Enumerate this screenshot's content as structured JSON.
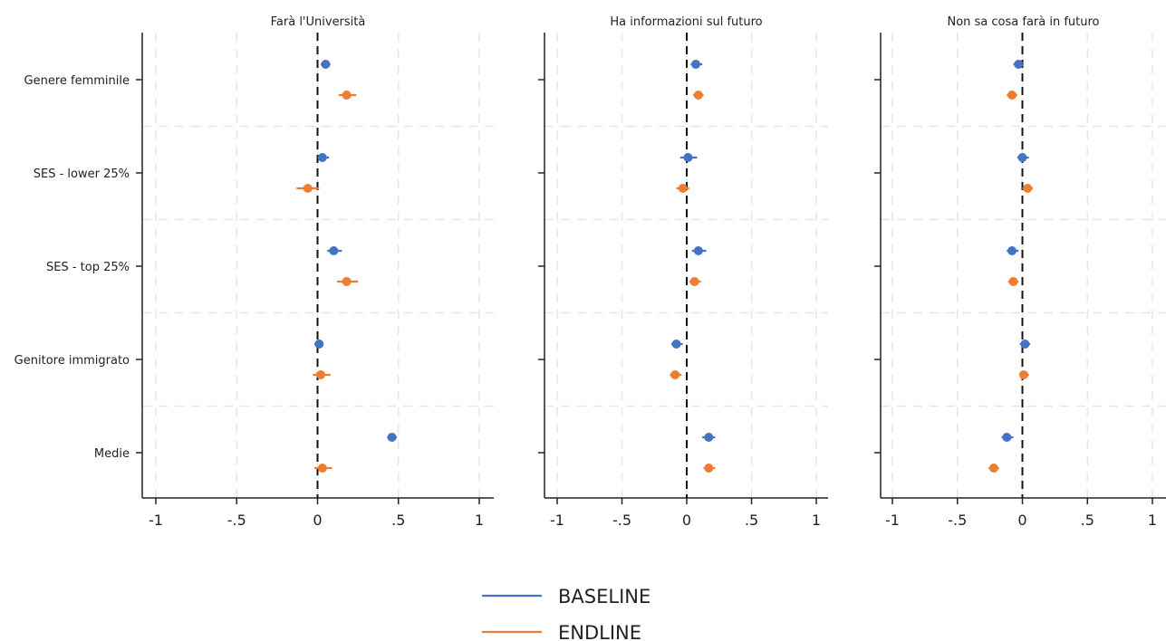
{
  "chart_data": {
    "type": "scatter",
    "subtype": "coefficient-plot",
    "categories": [
      "Genere femminile",
      "SES - lower 25%",
      "SES - top 25%",
      "Genitore immigrato",
      "Medie"
    ],
    "x_ticks": [
      -1,
      -0.5,
      0,
      0.5,
      1
    ],
    "x_tick_labels": [
      "-1",
      "-.5",
      "0",
      ".5",
      "1"
    ],
    "xlim": [
      -1.08,
      1.08
    ],
    "reference_line": 0,
    "grid": true,
    "legend_position": "bottom-center",
    "colors": {
      "baseline": "#4472C4",
      "endline": "#ED7D31"
    },
    "legend": [
      {
        "key": "baseline",
        "label": "BASELINE"
      },
      {
        "key": "endline",
        "label": "ENDLINE"
      }
    ],
    "panels": [
      {
        "title": "Farà l'Università",
        "series": [
          {
            "key": "baseline",
            "values": [
              0.05,
              0.03,
              0.1,
              0.01,
              0.46
            ],
            "ci_low": [
              0.02,
              0.0,
              0.06,
              -0.02,
              0.43
            ],
            "ci_high": [
              0.08,
              0.07,
              0.15,
              0.03,
              0.49
            ]
          },
          {
            "key": "endline",
            "values": [
              0.18,
              -0.06,
              0.18,
              0.02,
              0.03
            ],
            "ci_low": [
              0.13,
              -0.13,
              0.12,
              -0.03,
              -0.02
            ],
            "ci_high": [
              0.24,
              0.01,
              0.25,
              0.08,
              0.09
            ]
          }
        ]
      },
      {
        "title": "Ha informazioni sul futuro",
        "series": [
          {
            "key": "baseline",
            "values": [
              0.07,
              0.01,
              0.09,
              -0.08,
              0.17
            ],
            "ci_low": [
              0.03,
              -0.05,
              0.04,
              -0.12,
              0.12
            ],
            "ci_high": [
              0.12,
              0.08,
              0.15,
              -0.03,
              0.22
            ]
          },
          {
            "key": "endline",
            "values": [
              0.09,
              -0.03,
              0.06,
              -0.09,
              0.17
            ],
            "ci_low": [
              0.05,
              -0.08,
              0.02,
              -0.13,
              0.13
            ],
            "ci_high": [
              0.13,
              0.02,
              0.11,
              -0.04,
              0.22
            ]
          }
        ]
      },
      {
        "title": "Non sa cosa farà in futuro",
        "series": [
          {
            "key": "baseline",
            "values": [
              -0.03,
              0.0,
              -0.08,
              0.02,
              -0.12
            ],
            "ci_low": [
              -0.07,
              -0.04,
              -0.12,
              -0.02,
              -0.16
            ],
            "ci_high": [
              0.01,
              0.05,
              -0.03,
              0.06,
              -0.07
            ]
          },
          {
            "key": "endline",
            "values": [
              -0.08,
              0.04,
              -0.07,
              0.01,
              -0.22
            ],
            "ci_low": [
              -0.12,
              0.0,
              -0.11,
              -0.02,
              -0.26
            ],
            "ci_high": [
              -0.04,
              0.08,
              -0.03,
              0.05,
              -0.18
            ]
          }
        ]
      }
    ]
  }
}
